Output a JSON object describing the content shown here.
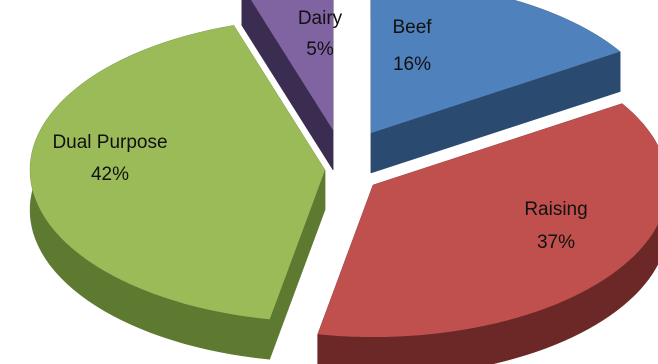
{
  "chart_data": {
    "type": "pie",
    "title": "",
    "style": "3d-exploded",
    "slices": [
      {
        "category": "Beef",
        "value": 16,
        "label": "16%",
        "color": "#4f81bd",
        "side_color": "#2a4a70"
      },
      {
        "category": "Raising",
        "value": 37,
        "label": "37%",
        "color": "#c0504d",
        "side_color": "#6b2826"
      },
      {
        "category": "Dual Purpose",
        "value": 42,
        "label": "42%",
        "color": "#9bbb59",
        "side_color": "#5e7a31"
      },
      {
        "category": "Dairy",
        "value": 5,
        "label": "5%",
        "color": "#8064a2",
        "side_color": "#3b2c52"
      }
    ]
  }
}
